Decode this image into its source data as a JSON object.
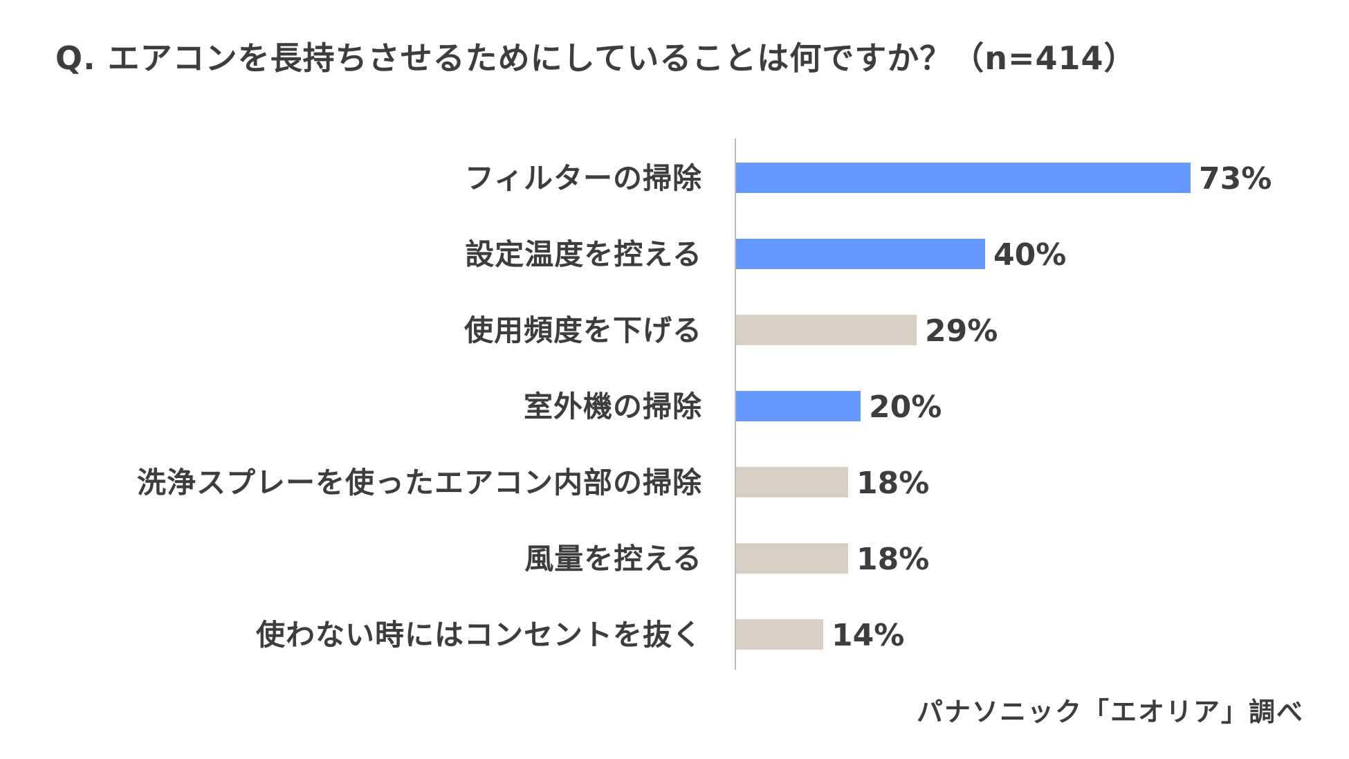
{
  "chart_data": {
    "type": "bar",
    "orientation": "horizontal",
    "title": "Q. エアコンを長持ちさせるためにしていることは何ですか？（n=414）",
    "categories": [
      "フィルターの掃除",
      "設定温度を控える",
      "使用頻度を下げる",
      "室外機の掃除",
      "洗浄スプレーを使ったエアコン内部の掃除",
      "風量を控える",
      "使わない時にはコンセントを抜く"
    ],
    "values": [
      73,
      40,
      29,
      20,
      18,
      18,
      14
    ],
    "value_labels": [
      "73%",
      "40%",
      "29%",
      "20%",
      "18%",
      "18%",
      "14%"
    ],
    "bar_colors": [
      "#6699ff",
      "#6699ff",
      "#d8cfc2",
      "#6699ff",
      "#d8cfc2",
      "#d8cfc2",
      "#d8cfc2"
    ],
    "xlim": [
      0,
      100
    ],
    "grid": false,
    "legend": "none",
    "source": "パナソニック「エオリア」調べ"
  }
}
